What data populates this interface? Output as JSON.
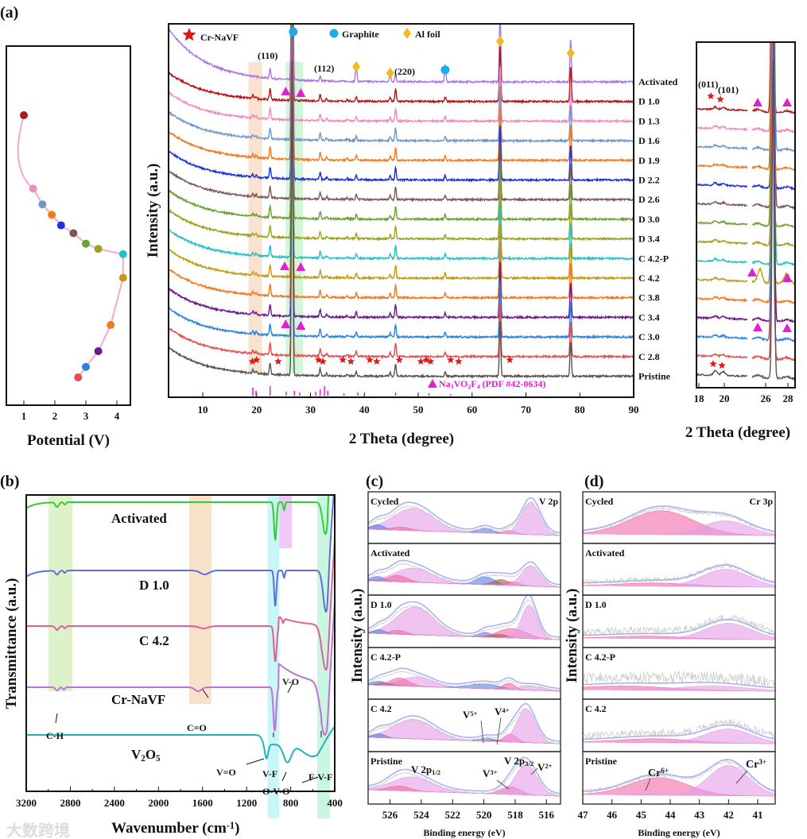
{
  "panel_labels": [
    "(a)",
    "(b)",
    "(c)",
    "(d)"
  ],
  "watermark": "大数跨境",
  "chart_data": [
    {
      "id": "a-potential",
      "type": "scatter",
      "xlabel": "Potential (V)",
      "xlim": [
        0.5,
        4.5
      ],
      "xticks": [
        1,
        2,
        3,
        4
      ],
      "points": [
        {
          "state": "D 1.0",
          "v": 1.0,
          "progress": 0.0,
          "color": "#b01818"
        },
        {
          "state": "D 1.3",
          "v": 1.3,
          "progress": 0.28,
          "color": "#f08cc0"
        },
        {
          "state": "D 1.6",
          "v": 1.6,
          "progress": 0.34,
          "color": "#6f98c8"
        },
        {
          "state": "D 1.9",
          "v": 1.9,
          "progress": 0.38,
          "color": "#f07a20"
        },
        {
          "state": "D 2.2",
          "v": 2.2,
          "progress": 0.42,
          "color": "#1a30d8"
        },
        {
          "state": "D 2.6",
          "v": 2.6,
          "progress": 0.45,
          "color": "#7a5858"
        },
        {
          "state": "D 3.0",
          "v": 3.0,
          "progress": 0.49,
          "color": "#6aa030"
        },
        {
          "state": "D 3.4",
          "v": 3.4,
          "progress": 0.51,
          "color": "#a0a020"
        },
        {
          "state": "C 4.2-P",
          "v": 4.2,
          "progress": 0.53,
          "color": "#28c0c8"
        },
        {
          "state": "C 4.2",
          "v": 4.2,
          "progress": 0.62,
          "color": "#c09a10"
        },
        {
          "state": "C 3.8",
          "v": 3.8,
          "progress": 0.8,
          "color": "#f07a20"
        },
        {
          "state": "C 3.4",
          "v": 3.4,
          "progress": 0.9,
          "color": "#6a1a8a"
        },
        {
          "state": "C 3.0",
          "v": 3.0,
          "progress": 0.96,
          "color": "#2a80e0"
        },
        {
          "state": "C 2.8",
          "v": 2.75,
          "progress": 1.0,
          "color": "#e05050"
        }
      ]
    },
    {
      "id": "a-xrd",
      "type": "line",
      "xlabel": "2 Theta (degree)",
      "ylabel": "Intensity (a.u.)",
      "xlim": [
        3.7,
        90
      ],
      "xticks": [
        10,
        20,
        30,
        40,
        50,
        60,
        70,
        80,
        90
      ],
      "legend": {
        "star": "Cr-NaVF",
        "circle": "Graphite",
        "diamond": "Al foil",
        "triangle_parts": [
          [
            "Na",
            ""
          ],
          [
            "3",
            "sub"
          ],
          [
            "VO",
            ""
          ],
          [
            "2",
            "sub"
          ],
          [
            "F",
            ""
          ],
          [
            "4",
            "sub"
          ],
          [
            " (PDF #42-0634)",
            ""
          ]
        ]
      },
      "miller": [
        "(110)",
        "(112)",
        "(220)"
      ],
      "series": [
        {
          "name": "Activated",
          "color": "#a87ae0"
        },
        {
          "name": "D 1.0",
          "color": "#b01818"
        },
        {
          "name": "D 1.3",
          "color": "#f08cc0"
        },
        {
          "name": "D 1.6",
          "color": "#6f98c8"
        },
        {
          "name": "D 1.9",
          "color": "#f07a20"
        },
        {
          "name": "D 2.2",
          "color": "#1a30d8"
        },
        {
          "name": "D 2.6",
          "color": "#7a5858"
        },
        {
          "name": "D 3.0",
          "color": "#6aa030"
        },
        {
          "name": "D 3.4",
          "color": "#a0a020"
        },
        {
          "name": "C 4.2-P",
          "color": "#28c0c8"
        },
        {
          "name": "C 4.2",
          "color": "#c09a10"
        },
        {
          "name": "C 3.8",
          "color": "#f07a20"
        },
        {
          "name": "C 3.4",
          "color": "#6a1a8a"
        },
        {
          "name": "C 3.0",
          "color": "#2a80e0"
        },
        {
          "name": "C 2.8",
          "color": "#e05050"
        },
        {
          "name": "Pristine",
          "color": "#555555"
        }
      ],
      "peaks_common": [
        [
          19.3,
          4
        ],
        [
          19.9,
          3
        ],
        [
          22.5,
          14
        ],
        [
          26.6,
          400
        ],
        [
          31.8,
          9
        ],
        [
          33.0,
          3
        ],
        [
          36.8,
          2
        ],
        [
          38.5,
          6
        ],
        [
          44.8,
          5
        ],
        [
          45.8,
          16
        ],
        [
          55.0,
          6
        ],
        [
          65.2,
          70
        ],
        [
          78.3,
          45
        ]
      ],
      "peaks_activated": [
        [
          22.5,
          12
        ],
        [
          26.6,
          400
        ],
        [
          31.8,
          6
        ],
        [
          38.5,
          22
        ],
        [
          44.8,
          12
        ],
        [
          45.8,
          10
        ],
        [
          55.0,
          22
        ],
        [
          65.2,
          90
        ],
        [
          78.3,
          55
        ]
      ],
      "graphite_peaks": [
        26.6,
        55.0
      ],
      "al_peaks": [
        38.5,
        44.8,
        65.2,
        78.3
      ],
      "cr_navf_peaks": [
        19.2,
        20.0,
        24.0,
        31.5,
        32.3,
        36.0,
        37.5,
        41.0,
        42.3,
        46.5,
        50.5,
        51.5,
        52.3,
        56.0,
        57.5,
        67.0
      ],
      "reference_sticks": [
        [
          19.3,
          10
        ],
        [
          19.9,
          6
        ],
        [
          22.5,
          12
        ],
        [
          25.5,
          5
        ],
        [
          27.0,
          6
        ],
        [
          28.0,
          4
        ],
        [
          31.0,
          5
        ],
        [
          31.8,
          8
        ],
        [
          32.6,
          12
        ],
        [
          33.2,
          6
        ],
        [
          36.2,
          3
        ],
        [
          38.8,
          4
        ],
        [
          45.8,
          4
        ],
        [
          52.0,
          3
        ],
        [
          56.0,
          2
        ]
      ]
    },
    {
      "id": "a-xrd-inset",
      "type": "line",
      "xlabel": "2 Theta (degree)",
      "xticks": [
        18,
        20,
        26,
        28
      ],
      "miller": [
        "(011)",
        "(101)"
      ]
    },
    {
      "id": "b-ftir",
      "type": "line",
      "xlabel_parts": [
        [
          "Wavenumber (cm",
          ""
        ],
        [
          "-1",
          "sup"
        ],
        [
          ")",
          ""
        ]
      ],
      "ylabel": "Transmittance (a.u.)",
      "xlim": [
        3200,
        400
      ],
      "xticks": [
        3200,
        2800,
        2400,
        2000,
        1600,
        1200,
        800,
        400
      ],
      "bands": [
        {
          "label": "C-H",
          "range": [
            3000,
            2780
          ],
          "color": "#d8f0c0"
        },
        {
          "label": "C=O",
          "range": [
            1720,
            1520
          ],
          "color": "#f6dcc0"
        },
        {
          "label": "V-F",
          "range": [
            1010,
            905
          ],
          "color": "#c0f4f4"
        },
        {
          "label": "V-O",
          "range": [
            905,
            790
          ],
          "color": "#eec0f4"
        },
        {
          "label": "F-V-F",
          "range": [
            560,
            445
          ],
          "color": "#c0f4dc"
        }
      ],
      "extra_labels": [
        "V=O",
        "O-V-O"
      ],
      "series": [
        {
          "name_parts": [
            [
              "Activated",
              ""
            ]
          ],
          "color": "#30d030",
          "dips": [
            [
              2920,
              6,
              15
            ],
            [
              2850,
              3,
              10
            ],
            [
              940,
              48,
              11
            ],
            [
              860,
              10,
              8
            ],
            [
              485,
              40,
              25
            ]
          ]
        },
        {
          "name_parts": [
            [
              "D 1.0",
              ""
            ]
          ],
          "color": "#6070d8",
          "dips": [
            [
              2920,
              5,
              15
            ],
            [
              2850,
              3,
              10
            ],
            [
              1580,
              5,
              40
            ],
            [
              940,
              45,
              10
            ],
            [
              860,
              9,
              8
            ],
            [
              480,
              52,
              25
            ]
          ]
        },
        {
          "name_parts": [
            [
              "C 4.2",
              ""
            ]
          ],
          "color": "#e0609a",
          "dips": [
            [
              2920,
              5,
              15
            ],
            [
              2850,
              3,
              10
            ],
            [
              1590,
              3,
              40
            ],
            [
              940,
              45,
              12
            ],
            [
              870,
              6,
              8
            ],
            [
              480,
              55,
              35
            ]
          ]
        },
        {
          "name_parts": [
            [
              "Cr-NaVF",
              ""
            ]
          ],
          "color": "#c070d8",
          "dips": [
            [
              2920,
              4,
              15
            ],
            [
              2860,
              3,
              10
            ],
            [
              1640,
              5,
              30
            ],
            [
              945,
              55,
              12
            ],
            [
              490,
              60,
              40
            ]
          ]
        },
        {
          "name_parts": [
            [
              "V",
              ""
            ],
            [
              "2",
              "sub"
            ],
            [
              "O",
              ""
            ],
            [
              "5",
              "sub"
            ]
          ],
          "color": "#20b4b4",
          "dips": [
            [
              1020,
              18,
              15
            ],
            [
              830,
              22,
              35
            ],
            [
              600,
              15,
              90
            ]
          ]
        }
      ]
    },
    {
      "id": "c-xps-v2p",
      "type": "area",
      "xlabel": "Binding energy (eV)",
      "ylabel": "Intensity (a.u.)",
      "xlim": [
        527.4,
        515.1
      ],
      "xticks": [
        526,
        524,
        522,
        520,
        518,
        516
      ],
      "title": "V 2p",
      "rows": [
        {
          "name": "Cycled",
          "components": [
            [
              524.5,
              28,
              1.3,
              "v"
            ],
            [
              526.8,
              6,
              0.4,
              "b"
            ],
            [
              525.3,
              4,
              0.6,
              "p"
            ],
            [
              519.9,
              6,
              0.5,
              "b"
            ],
            [
              518.4,
              4,
              0.4,
              "p"
            ],
            [
              517.0,
              40,
              0.6,
              "v"
            ]
          ]
        },
        {
          "name": "Activated",
          "components": [
            [
              524.5,
              18,
              1.2,
              "v"
            ],
            [
              526.8,
              6,
              0.4,
              "b"
            ],
            [
              525.5,
              8,
              0.6,
              "p"
            ],
            [
              519.9,
              10,
              0.6,
              "b"
            ],
            [
              518.9,
              7,
              0.5,
              "r"
            ],
            [
              518.2,
              5,
              0.5,
              "p"
            ],
            [
              517.0,
              25,
              0.6,
              "v"
            ]
          ]
        },
        {
          "name": "D 1.0",
          "components": [
            [
              524.4,
              35,
              1.2,
              "v"
            ],
            [
              526.7,
              5,
              0.4,
              "b"
            ],
            [
              525.5,
              5,
              0.5,
              "p"
            ],
            [
              519.9,
              6,
              0.4,
              "b"
            ],
            [
              518.2,
              12,
              0.9,
              "p"
            ],
            [
              519.0,
              4,
              0.5,
              "r"
            ],
            [
              517.1,
              42,
              0.5,
              "v"
            ]
          ]
        },
        {
          "name": "C 4.2-P",
          "components": [
            [
              524.3,
              12,
              1.0,
              "v"
            ],
            [
              526.7,
              5,
              0.5,
              "b"
            ],
            [
              526.3,
              3,
              0.5,
              "r"
            ],
            [
              525.4,
              10,
              0.6,
              "p"
            ],
            [
              520.0,
              6,
              1.0,
              "b"
            ],
            [
              518.4,
              8,
              0.4,
              "p"
            ],
            [
              517.0,
              5,
              0.8,
              "v"
            ]
          ]
        },
        {
          "name": "C 4.2",
          "components": [
            [
              524.5,
              24,
              1.3,
              "v"
            ],
            [
              526.7,
              5,
              0.4,
              "b"
            ],
            [
              519.8,
              4,
              0.5,
              "b"
            ],
            [
              519.1,
              2,
              0.4,
              "r"
            ],
            [
              518.3,
              10,
              0.4,
              "p"
            ],
            [
              517.3,
              42,
              0.6,
              "v"
            ]
          ]
        },
        {
          "name": "Pristine",
          "components": [
            [
              524.6,
              18,
              1.3,
              "v"
            ],
            [
              525.4,
              6,
              0.7,
              "p"
            ],
            [
              518.3,
              10,
              0.6,
              "p"
            ],
            [
              517.3,
              38,
              0.7,
              "v"
            ]
          ]
        }
      ],
      "annotations": {
        "v5": [
          [
            "V",
            ""
          ],
          [
            "5+",
            "sup"
          ]
        ],
        "v4": [
          [
            "V",
            ""
          ],
          [
            "4+",
            "sup"
          ]
        ],
        "v3": [
          [
            "V",
            ""
          ],
          [
            "3+",
            "sup"
          ]
        ],
        "v2": [
          [
            "V",
            ""
          ],
          [
            "2+",
            "sup"
          ]
        ],
        "p12": [
          [
            "V 2p",
            ""
          ],
          [
            "1/2",
            "sub"
          ]
        ],
        "p32": [
          [
            "V 2p",
            ""
          ],
          [
            "3/2",
            "sub"
          ]
        ]
      },
      "component_colors": {
        "v": "#e49ce8",
        "p": "#f06aa6",
        "b": "#5a7ee0",
        "r": "#a06040"
      }
    },
    {
      "id": "d-xps-cr3p",
      "type": "area",
      "xlabel": "Binding energy (eV)",
      "ylabel": "Intensity (a.u.)",
      "xlim": [
        47,
        40.4
      ],
      "xticks": [
        47,
        46,
        45,
        44,
        43,
        42,
        41
      ],
      "title": "Cr 3p",
      "rows": [
        {
          "name": "Cycled",
          "noise": 4,
          "components": [
            [
              44.3,
              30,
              1.1,
              "p"
            ],
            [
              42.1,
              18,
              0.8,
              "v"
            ]
          ]
        },
        {
          "name": "Activated",
          "noise": 6,
          "components": [
            [
              44.5,
              4,
              1.2,
              "p"
            ],
            [
              42.1,
              22,
              0.8,
              "v"
            ]
          ]
        },
        {
          "name": "D 1.0",
          "noise": 10,
          "components": [
            [
              44.7,
              3,
              1.2,
              "p"
            ],
            [
              42.0,
              20,
              0.8,
              "v"
            ]
          ]
        },
        {
          "name": "C 4.2-P",
          "noise": 15,
          "components": [
            [
              45.5,
              5,
              1.5,
              "p"
            ],
            [
              42.5,
              6,
              1.2,
              "v"
            ]
          ]
        },
        {
          "name": "C 4.2",
          "noise": 10,
          "components": [
            [
              44.5,
              5,
              1.2,
              "p"
            ],
            [
              42.0,
              18,
              0.8,
              "v"
            ]
          ]
        },
        {
          "name": "Pristine",
          "noise": 5,
          "components": [
            [
              44.4,
              22,
              1.0,
              "p"
            ],
            [
              42.0,
              38,
              0.7,
              "v"
            ]
          ]
        }
      ],
      "annotations": {
        "cr6": [
          [
            "Cr",
            ""
          ],
          [
            "6+",
            "sup"
          ]
        ],
        "cr3": [
          [
            "Cr",
            ""
          ],
          [
            "3+",
            "sup"
          ]
        ]
      },
      "component_colors": {
        "v": "#e49ce8",
        "p": "#f06aa6"
      }
    }
  ]
}
